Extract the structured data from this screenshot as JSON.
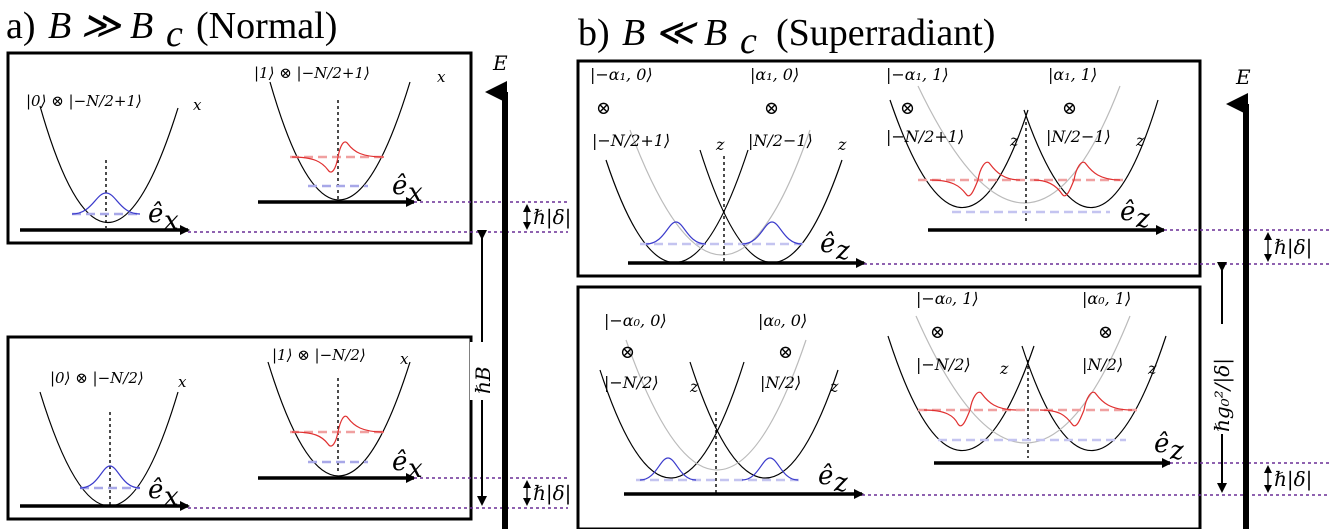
{
  "panel_a": {
    "title": "a) B ≫ B_c (Normal)",
    "title_a": "a)",
    "title_expr": "B ≫ B",
    "title_sub": "c",
    "title_mode": "(Normal)",
    "upper_left_state": "|0⟩ ⊗ |−N/2+1⟩",
    "upper_right_state": "|1⟩ ⊗ |−N/2+1⟩",
    "lower_left_state": "|0⟩ ⊗ |−N/2⟩",
    "lower_right_state": "|1⟩ ⊗ |−N/2⟩",
    "state_sub": "x",
    "axis_label": "ê",
    "axis_sub": "x",
    "gap_label": "ℏ|δ|",
    "field_label": "ℏB",
    "energy_label": "E"
  },
  "panel_b": {
    "title_b": "b)",
    "title_expr": "B ≪ B",
    "title_sub": "c",
    "title_mode": "(Superradiant)",
    "upper_states": [
      {
        "top": "|−α₁, 0⟩",
        "bottom": "|−N/2+1⟩"
      },
      {
        "top": "|α₁, 0⟩",
        "bottom": "|N/2−1⟩"
      },
      {
        "top": "|−α₁, 1⟩",
        "bottom": "|−N/2+1⟩"
      },
      {
        "top": "|α₁, 1⟩",
        "bottom": "|N/2−1⟩"
      }
    ],
    "lower_states": [
      {
        "top": "|−α₀, 0⟩",
        "bottom": "|−N/2⟩"
      },
      {
        "top": "|α₀, 0⟩",
        "bottom": "|N/2⟩"
      },
      {
        "top": "|−α₀, 1⟩",
        "bottom": "|−N/2⟩"
      },
      {
        "top": "|α₀, 1⟩",
        "bottom": "|N/2⟩"
      }
    ],
    "tensor_symbol": "⊗",
    "state_sub": "z",
    "axis_label": "ê",
    "axis_sub": "z",
    "gap_label": "ℏ|δ|",
    "coupling_label": "ℏg₀²/|δ|",
    "energy_label": "E"
  },
  "colors": {
    "ground": "#3b3bcc",
    "excited": "#e03030",
    "guide": "#6a2e96",
    "ground_level": "#a8a8e8",
    "excited_level": "#f0a0a0"
  }
}
